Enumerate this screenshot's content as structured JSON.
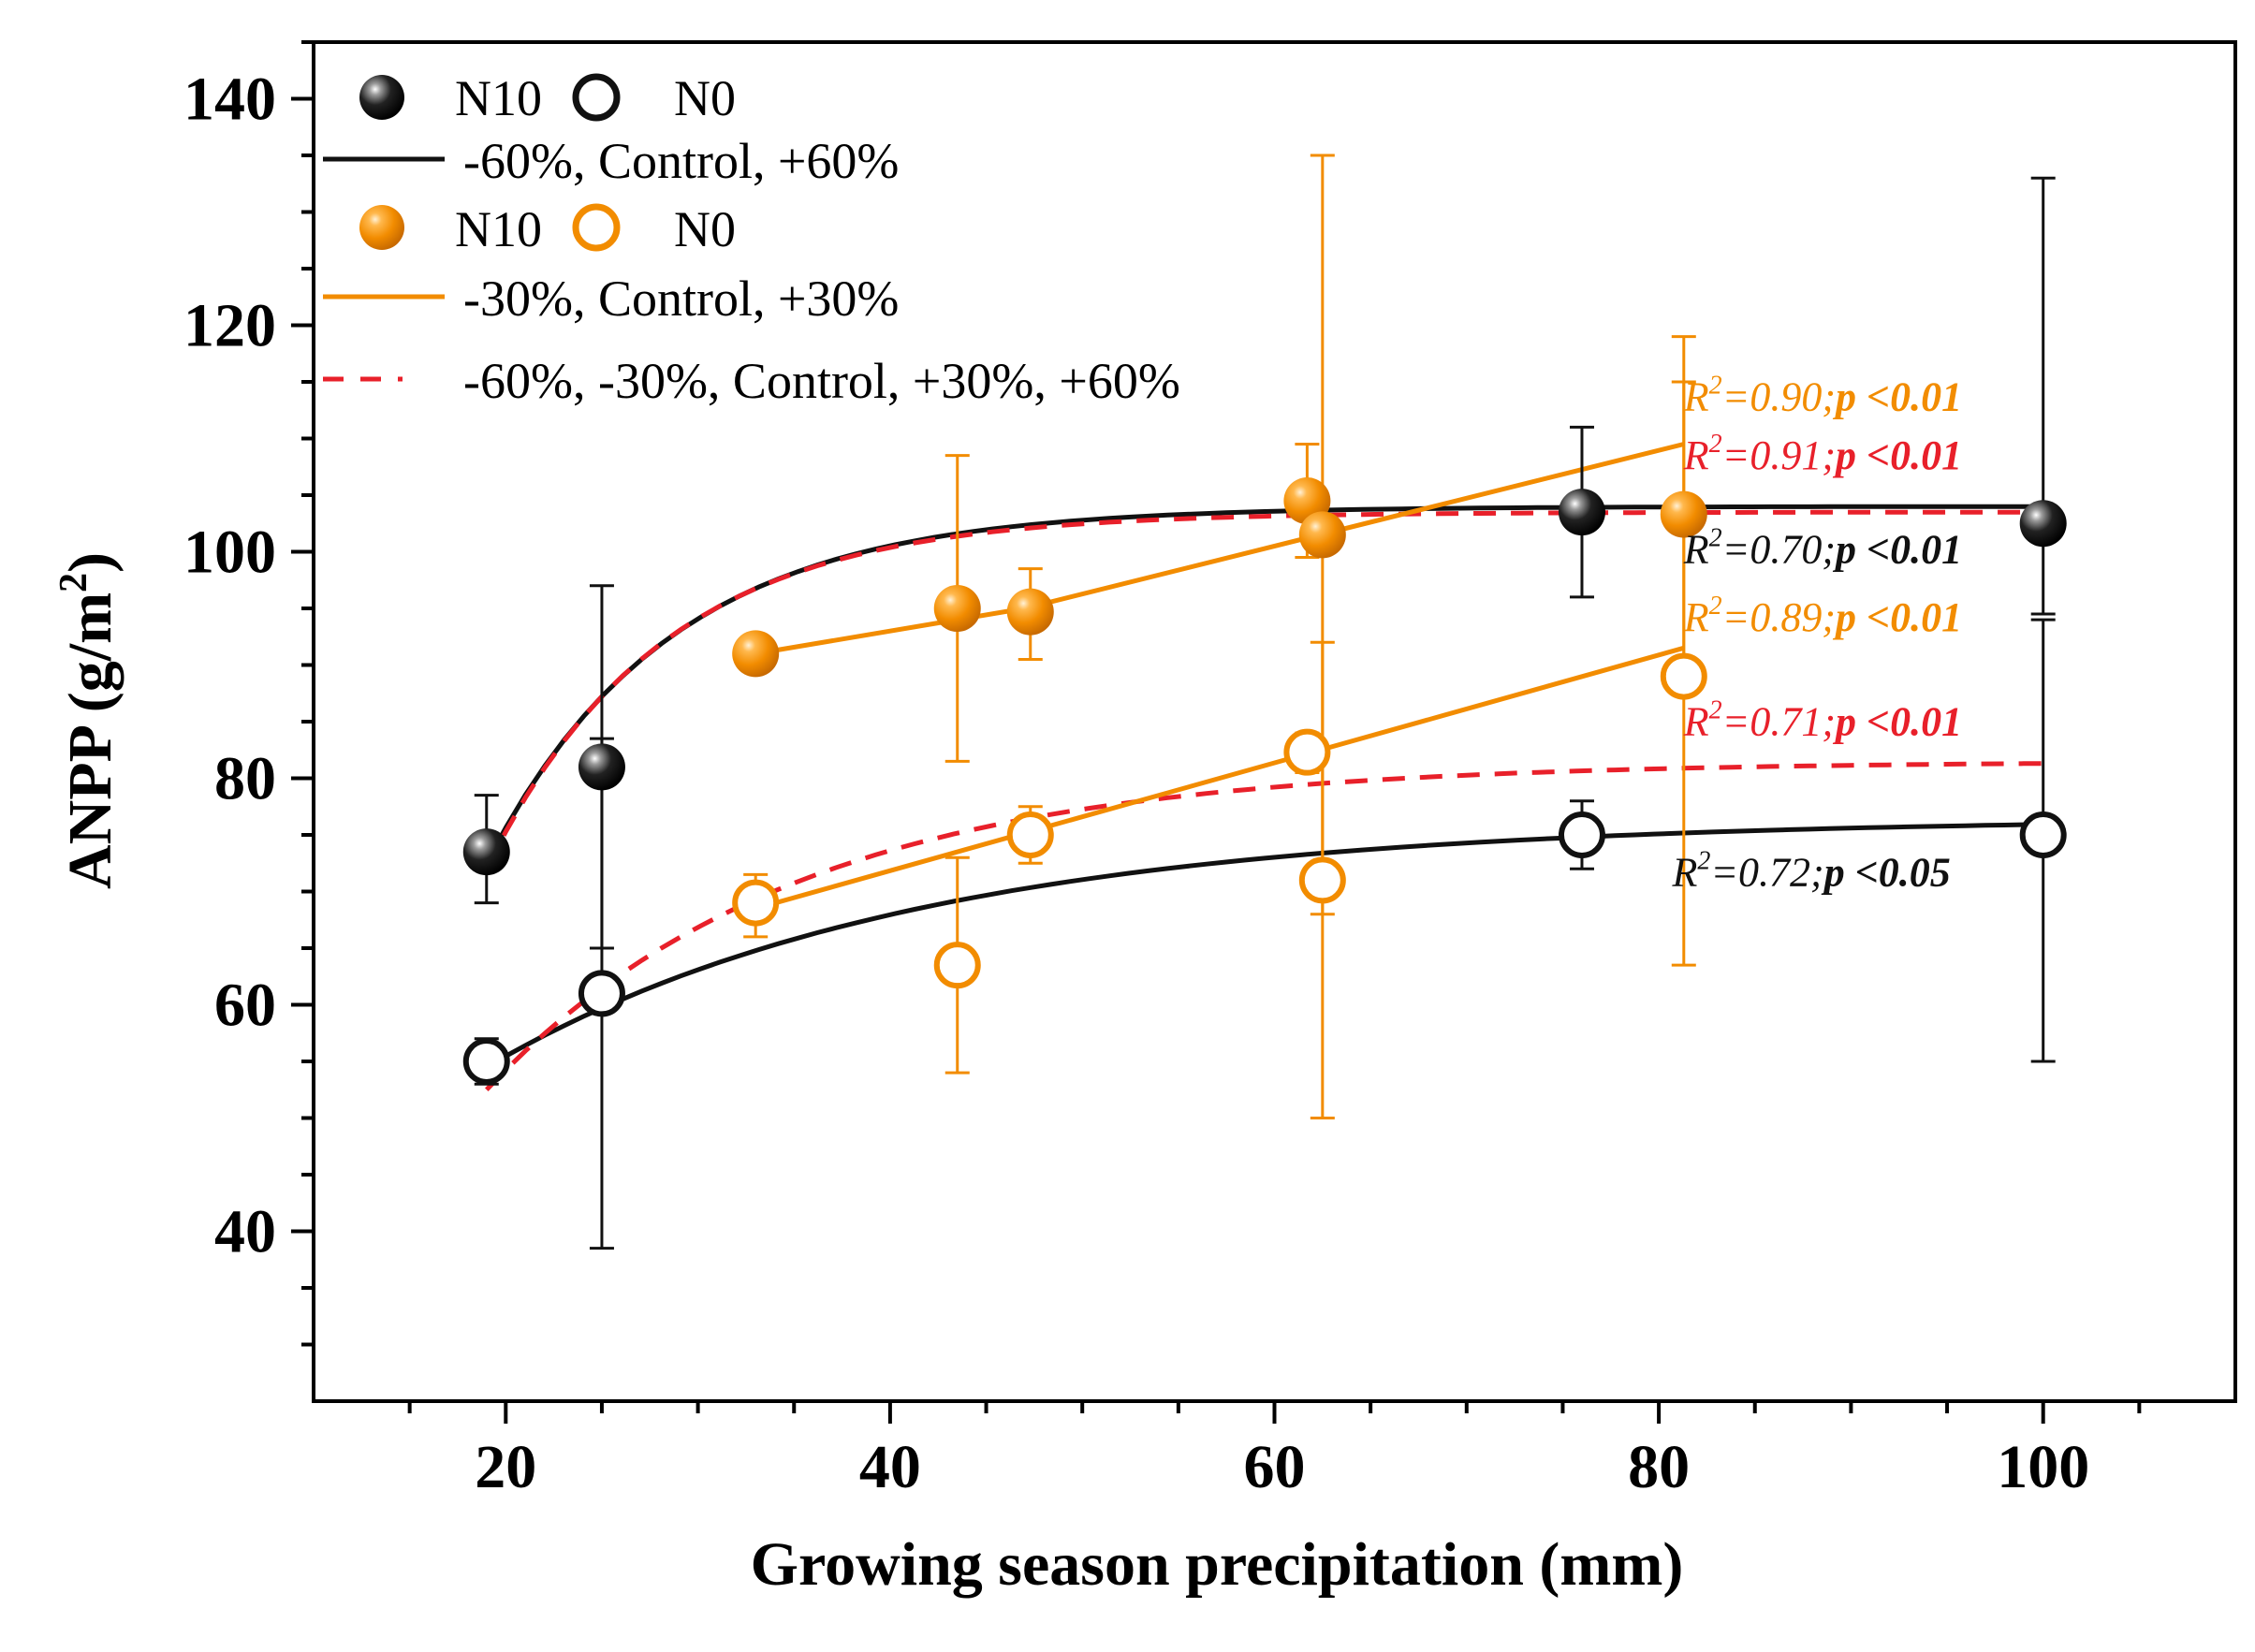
{
  "chart_data": {
    "type": "scatter",
    "title": "",
    "xlabel": "Growing season precipitation (mm)",
    "ylabel_main": "ANPP (g/m",
    "ylabel_sup": "2",
    "ylabel_close": ")",
    "xlim": [
      10,
      110
    ],
    "ylim": [
      25,
      145
    ],
    "xticks": [
      20,
      40,
      60,
      80,
      100
    ],
    "yticks": [
      40,
      60,
      80,
      100,
      120,
      140
    ],
    "xtick_labels": [
      "20",
      "40",
      "60",
      "80",
      "100"
    ],
    "ytick_labels": [
      "40",
      "60",
      "80",
      "100",
      "120",
      "140"
    ],
    "grid": false,
    "legend_position": "top-left",
    "colors": {
      "black": "#111111",
      "orange": "#F28C00",
      "red": "#E8202A"
    },
    "legend": {
      "row1_n10": "N10",
      "row1_n0": "N0",
      "row2": "-60%, Control, +60%",
      "row3_n10": "N10",
      "row3_n0": "N0",
      "row4": "-30%, Control, +30%",
      "row5": "-60%, -30%, Control, +30%, +60%"
    },
    "series": [
      {
        "name": "N10",
        "group": "-60%, Control, +60%",
        "color": "#111111",
        "marker": "filled",
        "points": [
          {
            "x": 19,
            "y": 73.5,
            "err_hi": 78.5,
            "err_lo": 69
          },
          {
            "x": 25,
            "y": 81,
            "err_hi": 97,
            "err_lo": 65
          },
          {
            "x": 76,
            "y": 103.5,
            "err_hi": 111,
            "err_lo": 96
          },
          {
            "x": 100,
            "y": 102.5,
            "err_hi": 133,
            "err_lo": 94.5
          }
        ]
      },
      {
        "name": "N0",
        "group": "-60%, Control, +60%",
        "color": "#111111",
        "marker": "open",
        "points": [
          {
            "x": 19,
            "y": 55,
            "err_hi": 57,
            "err_lo": 53
          },
          {
            "x": 25,
            "y": 61,
            "err_hi": 83.5,
            "err_lo": 38.5
          },
          {
            "x": 76,
            "y": 75,
            "err_hi": 78,
            "err_lo": 72
          },
          {
            "x": 100,
            "y": 75,
            "err_hi": 94,
            "err_lo": 55
          }
        ]
      },
      {
        "name": "N10",
        "group": "-30%, Control, +30%",
        "color": "#F28C00",
        "marker": "filled",
        "points": [
          {
            "x": 33,
            "y": 91,
            "err_hi": 91.5,
            "err_lo": 90.5
          },
          {
            "x": 43.5,
            "y": 95,
            "err_hi": 108.5,
            "err_lo": 81.5
          },
          {
            "x": 47.3,
            "y": 94.7,
            "err_hi": 98.5,
            "err_lo": 90.5
          },
          {
            "x": 61.7,
            "y": 104.5,
            "err_hi": 109.5,
            "err_lo": 99.5
          },
          {
            "x": 62.5,
            "y": 101.5,
            "err_hi": 135,
            "err_lo": 68
          },
          {
            "x": 81.3,
            "y": 103.3,
            "err_hi": 119,
            "err_lo": 88
          }
        ]
      },
      {
        "name": "N0",
        "group": "-30%, Control, +30%",
        "color": "#F28C00",
        "marker": "open",
        "points": [
          {
            "x": 33,
            "y": 69,
            "err_hi": 71.5,
            "err_lo": 66
          },
          {
            "x": 43.5,
            "y": 63.5,
            "err_hi": 73,
            "err_lo": 54
          },
          {
            "x": 47.3,
            "y": 75,
            "err_hi": 77.5,
            "err_lo": 72.5
          },
          {
            "x": 61.7,
            "y": 82.3,
            "err_hi": 84,
            "err_lo": 80.5
          },
          {
            "x": 62.5,
            "y": 71,
            "err_hi": 92,
            "err_lo": 50
          },
          {
            "x": 81.3,
            "y": 89,
            "err_hi": 115,
            "err_lo": 63.5
          }
        ]
      }
    ],
    "fits": [
      {
        "id": "black-n10",
        "color": "#111111",
        "dash": false,
        "type": "curve",
        "x_range": [
          19,
          100
        ],
        "y_asym": 104,
        "y_at_start": 72.5,
        "k": 0.105
      },
      {
        "id": "red-n10",
        "color": "#E8202A",
        "dash": true,
        "type": "curve",
        "x_range": [
          19,
          100
        ],
        "y_asym": 103.5,
        "y_at_start": 72,
        "k": 0.11
      },
      {
        "id": "black-n0",
        "color": "#111111",
        "dash": false,
        "type": "curve",
        "x_range": [
          19,
          100
        ],
        "y_asym": 76.5,
        "y_at_start": 54.5,
        "k": 0.045
      },
      {
        "id": "red-n0",
        "color": "#E8202A",
        "dash": true,
        "type": "curve",
        "x_range": [
          19,
          100
        ],
        "y_asym": 81.5,
        "y_at_start": 52.5,
        "k": 0.062
      },
      {
        "id": "orange-n10",
        "color": "#F28C00",
        "dash": false,
        "type": "linear",
        "points": [
          [
            33,
            91
          ],
          [
            47,
            95
          ],
          [
            81.3,
            109.5
          ]
        ]
      },
      {
        "id": "orange-n0",
        "color": "#F28C00",
        "dash": false,
        "type": "linear",
        "points": [
          [
            33,
            68.5
          ],
          [
            81.3,
            91.5
          ]
        ]
      }
    ],
    "annotations": [
      {
        "prefix": "R",
        "sup": "2",
        "mid": "=0.90;",
        "bold": "p <0.01",
        "color": "#F28C00",
        "x": 81.3,
        "y": 112.5
      },
      {
        "prefix": "R",
        "sup": "2",
        "mid": "=0.91;",
        "bold": "p <0.01",
        "color": "#E8202A",
        "x": 81.3,
        "y": 107.3
      },
      {
        "prefix": "R",
        "sup": "2",
        "mid": "=0.70;",
        "bold": "p <0.01",
        "color": "#111111",
        "x": 81.3,
        "y": 99
      },
      {
        "prefix": "R",
        "sup": "2",
        "mid": "=0.89;",
        "bold": "p <0.01",
        "color": "#F28C00",
        "x": 81.3,
        "y": 93
      },
      {
        "prefix": "R",
        "sup": "2",
        "mid": "=0.71;",
        "bold": "p <0.01",
        "color": "#E8202A",
        "x": 81.3,
        "y": 83.8
      },
      {
        "prefix": "R",
        "sup": "2",
        "mid": "=0.72;",
        "bold": "p <0.05",
        "color": "#111111",
        "x": 80.7,
        "y": 70.5
      }
    ]
  }
}
